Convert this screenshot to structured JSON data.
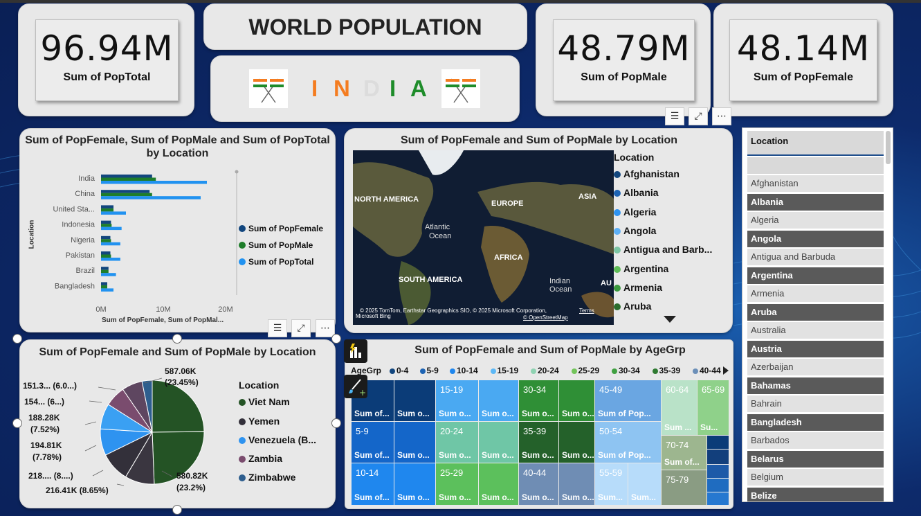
{
  "kpis": {
    "total": {
      "value": "96.94M",
      "label": "Sum of PopTotal"
    },
    "male": {
      "value": "48.79M",
      "label": "Sum of PopMale"
    },
    "female": {
      "value": "48.14M",
      "label": "Sum of PopFemale"
    }
  },
  "header": {
    "title": "WORLD POPULATION",
    "country_letters": [
      "I",
      "N",
      "D",
      "I",
      "A"
    ],
    "country_colors": [
      "#f47c20",
      "#f47c20",
      "#dcdcdc",
      "#1e8c2a",
      "#1e8c2a"
    ]
  },
  "bar_chart": {
    "title_line1": "Sum of PopFemale, Sum of PopMale and Sum of PopTotal",
    "title_line2": "by Location",
    "ylabel": "Location",
    "xlabel": "Sum of PopFemale, Sum of PopMal...",
    "ticks": [
      "0M",
      "10M",
      "20M"
    ],
    "legend": [
      "Sum of PopFemale",
      "Sum of PopMale",
      "Sum of PopTotal"
    ]
  },
  "map": {
    "title": "Sum of PopFemale and Sum of PopMale by Location",
    "legend_title": "Location",
    "legend": [
      "Afghanistan",
      "Albania",
      "Algeria",
      "Angola",
      "Antigua and Barb...",
      "Argentina",
      "Armenia",
      "Aruba"
    ],
    "labels": {
      "na": "NORTH AMERICA",
      "eu": "EUROPE",
      "asia": "ASIA",
      "atl": "Atlantic",
      "atl2": "Ocean",
      "af": "AFRICA",
      "sa": "SOUTH AMERICA",
      "ind": "Indian",
      "ind2": "Ocean",
      "au": "AU"
    },
    "attribution": "© 2025 TomTom, Earthstar Geographics SIO, © 2025 Microsoft Corporation,",
    "terms": "Terms",
    "osm": "© OpenStreetMap",
    "bing": "Microsoft Bing"
  },
  "pie": {
    "title": "Sum of PopFemale and Sum of PopMale by Location",
    "legend_title": "Location",
    "legend": [
      "Viet Nam",
      "Yemen",
      "Venezuela (B...",
      "Zambia",
      "Zimbabwe"
    ],
    "labels": {
      "l1a": "587.06K",
      "l1b": "(23.45%)",
      "l2a": "580.82K",
      "l2b": "(23.2%)",
      "l3": "216.41K (8.65%)",
      "l4": "218.... (8....)",
      "l5a": "194.81K",
      "l5b": "(7.78%)",
      "l6a": "188.28K",
      "l6b": "(7.52%)",
      "l7": "154... (6...)",
      "l8": "151.3... (6.0...)"
    }
  },
  "treemap": {
    "title": "Sum of PopFemale and Sum of PopMale by AgeGrp",
    "legend_title": "AgeGrp",
    "legend": [
      "0-4",
      "5-9",
      "10-14",
      "15-19",
      "20-24",
      "25-29",
      "30-34",
      "35-39",
      "40-44"
    ],
    "cells": {
      "c1": "Sum of...",
      "c2": "Sum o...",
      "c3": "15-19",
      "c4": "Sum o...",
      "c5": "Sum o...",
      "c6": "30-34",
      "c7": "Sum o...",
      "c8": "Sum o...",
      "c9": "45-49",
      "c10": "Sum of Pop...",
      "c11": "60-64",
      "c12": "65-69",
      "c13": "Sum ...",
      "c14": "Su...",
      "c15": "5-9",
      "c16": "Sum of...",
      "c17": "Sum o...",
      "c18": "20-24",
      "c19": "Sum o...",
      "c20": "Sum o...",
      "c21": "35-39",
      "c22": "Sum o...",
      "c23": "Sum o...",
      "c24": "50-54",
      "c25": "Sum of Pop...",
      "c26": "70-74",
      "c27": "Sum of...",
      "c28": "10-14",
      "c29": "Sum of...",
      "c30": "Sum o...",
      "c31": "25-29",
      "c32": "Sum o...",
      "c33": "Sum o...",
      "c34": "40-44",
      "c35": "Sum o...",
      "c36": "Sum o...",
      "c37": "55-59",
      "c38": "Sum...",
      "c39": "Sum...",
      "c40": "75-79"
    }
  },
  "slicer": {
    "header": "Location",
    "items": [
      "Afghanistan",
      "Albania",
      "Algeria",
      "Angola",
      "Antigua and Barbuda",
      "Argentina",
      "Armenia",
      "Aruba",
      "Australia",
      "Austria",
      "Azerbaijan",
      "Bahamas",
      "Bahrain",
      "Bangladesh",
      "Barbados",
      "Belarus",
      "Belgium",
      "Belize"
    ]
  },
  "chart_data": [
    {
      "type": "bar",
      "title": "Sum of PopFemale, Sum of PopMale and Sum of PopTotal by Location",
      "xlabel": "Sum of PopFemale, Sum of PopMal...",
      "ylabel": "Location",
      "categories": [
        "India",
        "China",
        "United Sta...",
        "Indonesia",
        "Nigeria",
        "Pakistan",
        "Brazil",
        "Bangladesh"
      ],
      "series": [
        {
          "name": "Sum of PopFemale",
          "color": "#12467e",
          "values": [
            8.2,
            7.8,
            2.0,
            1.6,
            1.5,
            1.5,
            1.2,
            1.0
          ]
        },
        {
          "name": "Sum of PopMale",
          "color": "#1e7d2a",
          "values": [
            8.8,
            8.2,
            2.0,
            1.7,
            1.6,
            1.6,
            1.2,
            1.0
          ]
        },
        {
          "name": "Sum of PopTotal",
          "color": "#2192f0",
          "values": [
            17.0,
            16.0,
            4.0,
            3.3,
            3.1,
            3.1,
            2.4,
            2.0
          ]
        }
      ],
      "xlim": [
        0,
        22
      ],
      "ticks": [
        0,
        10,
        20
      ]
    },
    {
      "type": "pie",
      "title": "Sum of PopFemale and Sum of PopMale by Location",
      "slices": [
        {
          "label": "587.06K (23.45%)",
          "value": 23.45,
          "color": "#245325"
        },
        {
          "label": "580.82K (23.2%)",
          "value": 23.2,
          "color": "#245325"
        },
        {
          "label": "216.41K (8.65%)",
          "value": 8.65,
          "color": "#3a3640"
        },
        {
          "label": "218.... (8....)",
          "value": 8.7,
          "color": "#33303a"
        },
        {
          "label": "194.81K (7.78%)",
          "value": 7.78,
          "color": "#2e93f0"
        },
        {
          "label": "188.28K (7.52%)",
          "value": 7.52,
          "color": "#3aa0f3"
        },
        {
          "label": "154... (6...)",
          "value": 6.1,
          "color": "#7a4c6e"
        },
        {
          "label": "151.3... (6.0...)",
          "value": 6.05,
          "color": "#5e4660"
        },
        {
          "label": "",
          "value": 3.0,
          "color": "#2e5e8e"
        }
      ]
    }
  ]
}
